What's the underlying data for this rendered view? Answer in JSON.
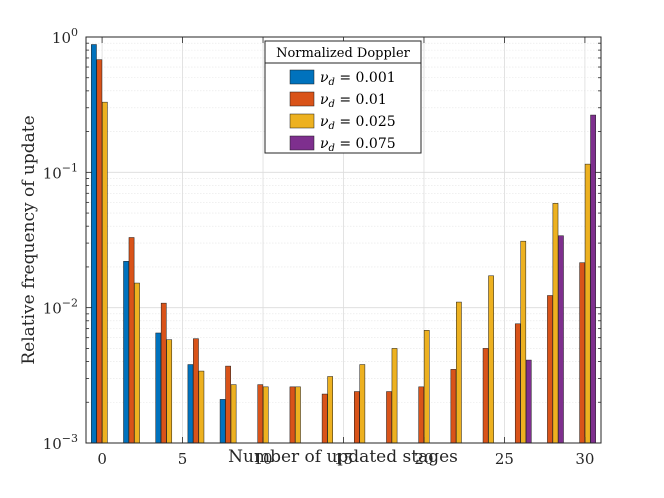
{
  "chart_data": {
    "type": "bar",
    "scale": "log",
    "title": "",
    "xlabel": "Number of updated stages",
    "ylabel": "Relative frequency of update",
    "xlim": [
      -1,
      31
    ],
    "ylim": [
      0.001,
      1
    ],
    "xticks": [
      0,
      5,
      10,
      15,
      20,
      25,
      30
    ],
    "yticks": [
      {
        "value": 0.001,
        "base": "10",
        "exp": "−3"
      },
      {
        "value": 0.01,
        "base": "10",
        "exp": "−2"
      },
      {
        "value": 0.1,
        "base": "10",
        "exp": "−1"
      },
      {
        "value": 1,
        "base": "10",
        "exp": "0"
      }
    ],
    "grid": true,
    "legend": {
      "title": "Normalized Doppler",
      "position": "top-center",
      "entries": [
        "ν_d = 0.001",
        "ν_d = 0.01",
        "ν_d = 0.025",
        "ν_d = 0.075"
      ]
    },
    "categories": [
      0,
      2,
      4,
      6,
      8,
      10,
      12,
      14,
      16,
      18,
      20,
      22,
      24,
      26,
      28,
      30
    ],
    "series": [
      {
        "name": "ν_d = 0.001",
        "symbol": "ν",
        "sub": "d",
        "eq": " = 0.001",
        "color": "#0072BD",
        "values": [
          0.88,
          0.022,
          0.0065,
          0.0038,
          0.0021,
          null,
          null,
          null,
          null,
          null,
          null,
          null,
          null,
          null,
          null,
          null
        ]
      },
      {
        "name": "ν_d = 0.01",
        "symbol": "ν",
        "sub": "d",
        "eq": " = 0.01",
        "color": "#D95319",
        "values": [
          0.68,
          0.033,
          0.0108,
          0.0059,
          0.0037,
          0.0027,
          0.0026,
          0.0023,
          0.0024,
          0.0024,
          0.0026,
          0.0035,
          0.005,
          0.0076,
          0.0123,
          0.0215
        ]
      },
      {
        "name": "ν_d = 0.025",
        "symbol": "ν",
        "sub": "d",
        "eq": " = 0.025",
        "color": "#EDB120",
        "values": [
          0.33,
          0.0152,
          0.0058,
          0.0034,
          0.0027,
          0.0026,
          0.0026,
          0.0031,
          0.0038,
          0.005,
          0.0068,
          0.011,
          0.0172,
          0.031,
          0.059,
          0.115
        ]
      },
      {
        "name": "ν_d = 0.075",
        "symbol": "ν",
        "sub": "d",
        "eq": " = 0.075",
        "color": "#7E2F8E",
        "values": [
          null,
          null,
          null,
          null,
          null,
          null,
          null,
          null,
          null,
          null,
          null,
          null,
          null,
          0.0041,
          0.034,
          0.265
        ]
      }
    ]
  }
}
